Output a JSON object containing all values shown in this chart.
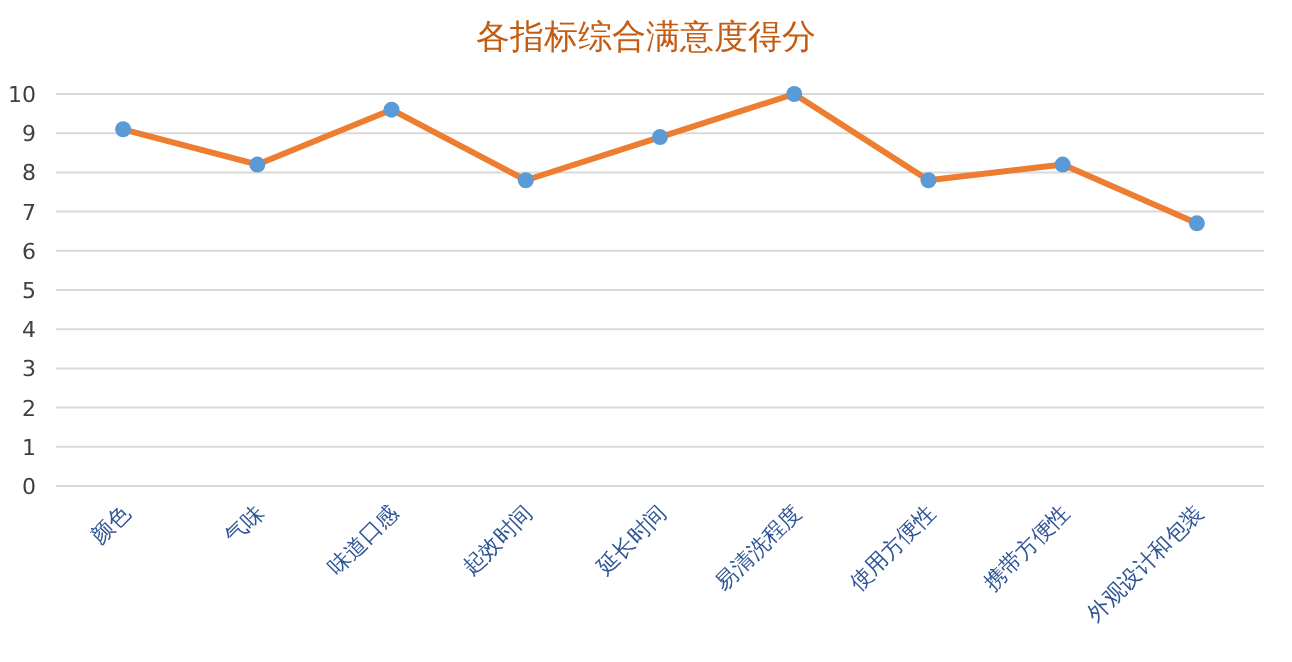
{
  "chart_data": {
    "type": "line",
    "title": "各指标综合满意度得分",
    "categories": [
      "颜色",
      "气味",
      "味道口感",
      "起效时间",
      "延长时间",
      "易清洗程度",
      "使用方便性",
      "携带方便性",
      "外观设计和包装"
    ],
    "series": [
      {
        "color": "#ed7d31",
        "values": [
          9.1,
          8.2,
          9.6,
          7.8,
          8.9,
          10.0,
          7.8,
          8.2,
          6.7
        ]
      }
    ],
    "ylim": [
      0,
      10
    ],
    "yticks": [
      0,
      1,
      2,
      3,
      4,
      5,
      6,
      7,
      8,
      9,
      10
    ],
    "grid": "y",
    "marker": "circle",
    "line_style": "solid"
  }
}
